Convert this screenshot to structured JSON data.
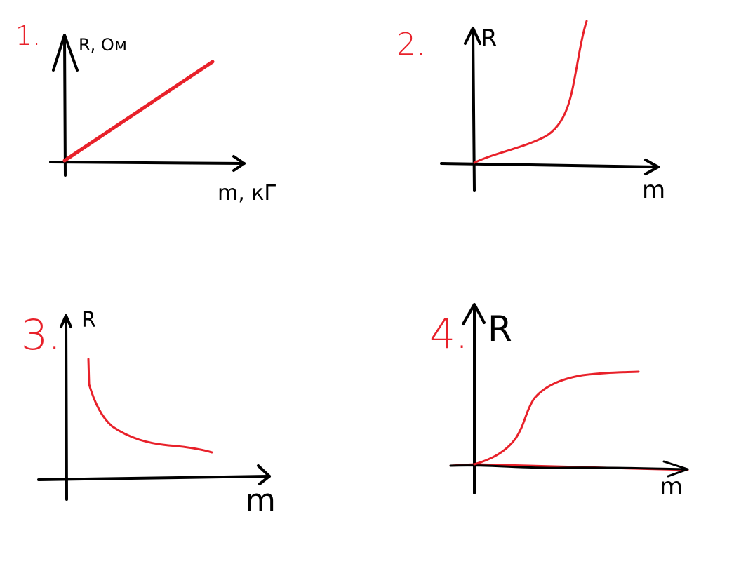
{
  "colors": {
    "background": "#ffffff",
    "axis": "#000000",
    "curve": "#e8212a"
  },
  "graphs": [
    {
      "number": "1.",
      "y_label": "R, Ом",
      "x_label": "m, кГ",
      "curve": "straight line rising from origin"
    },
    {
      "number": "2.",
      "y_label": "R",
      "x_label": "m",
      "curve": "slow rise then steep increase"
    },
    {
      "number": "3.",
      "y_label": "R",
      "x_label": "m",
      "curve": "decreasing, hyperbola-like"
    },
    {
      "number": "4.",
      "y_label": "R",
      "x_label": "m",
      "curve": "S-shaped rise to a plateau, with a flat line along the x axis"
    }
  ]
}
